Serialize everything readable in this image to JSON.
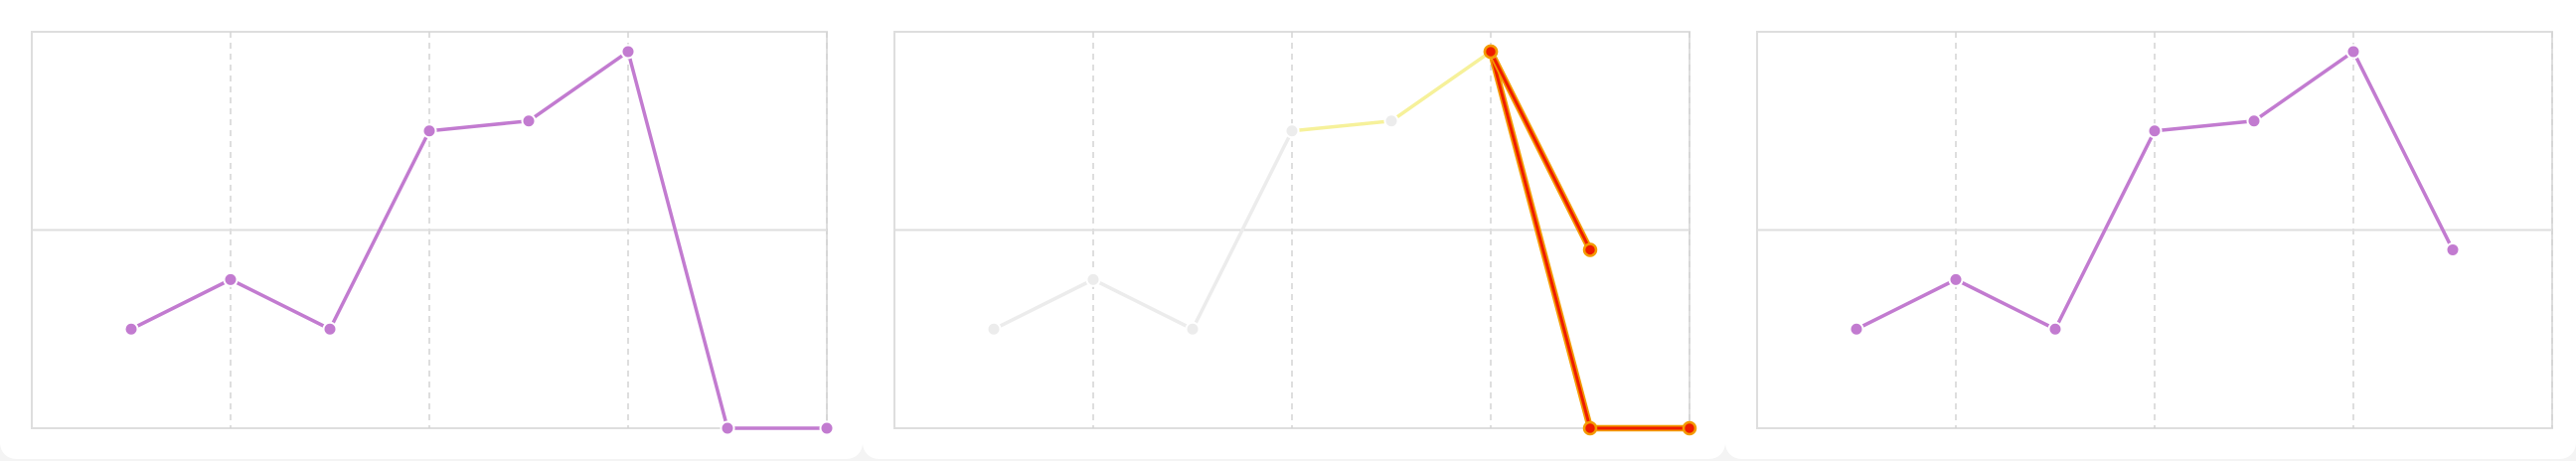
{
  "colors": {
    "background": "#f4f4f4",
    "panel": "#ffffff",
    "frame": "#dedede",
    "grid": "#d4d4d4",
    "midline": "#dedede",
    "series_purple": "#c27bd0",
    "faded_gray": "#ececec",
    "faded_yellow": "#f6f19a",
    "highlight_red": "#ee1c00",
    "highlight_orange": "#f39a00"
  },
  "chart_data": [
    {
      "type": "line",
      "panel": "left",
      "title": "",
      "xlabel": "",
      "ylabel": "",
      "xlim": [
        0,
        8
      ],
      "ylim": [
        0,
        4
      ],
      "grid": true,
      "series": [
        {
          "style": "purple",
          "points": [
            [
              1,
              1
            ],
            [
              2,
              1.5
            ],
            [
              3,
              1
            ],
            [
              4,
              3
            ],
            [
              5,
              3.1
            ],
            [
              6,
              3.8
            ],
            [
              7,
              0
            ],
            [
              8,
              0
            ]
          ]
        }
      ]
    },
    {
      "type": "line",
      "panel": "middle",
      "title": "",
      "xlabel": "",
      "ylabel": "",
      "xlim": [
        0,
        8
      ],
      "ylim": [
        0,
        4
      ],
      "grid": true,
      "series": [
        {
          "style": "faded",
          "points": [
            [
              1,
              1
            ],
            [
              2,
              1.5
            ],
            [
              3,
              1
            ],
            [
              4,
              3
            ]
          ]
        },
        {
          "style": "yellow",
          "points": [
            [
              4,
              3
            ],
            [
              5,
              3.1
            ],
            [
              6,
              3.8
            ]
          ]
        },
        {
          "style": "highlight",
          "points": [
            [
              6,
              3.8
            ],
            [
              7,
              0
            ],
            [
              8,
              0
            ]
          ]
        },
        {
          "style": "highlight",
          "points": [
            [
              6,
              3.8
            ],
            [
              7,
              1.8
            ]
          ]
        }
      ]
    },
    {
      "type": "line",
      "panel": "right",
      "title": "",
      "xlabel": "",
      "ylabel": "",
      "xlim": [
        0,
        8
      ],
      "ylim": [
        0,
        4
      ],
      "grid": true,
      "series": [
        {
          "style": "purple",
          "points": [
            [
              1,
              1
            ],
            [
              2,
              1.5
            ],
            [
              3,
              1
            ],
            [
              4,
              3
            ],
            [
              5,
              3.1
            ],
            [
              6,
              3.8
            ],
            [
              7,
              1.8
            ]
          ]
        }
      ]
    }
  ]
}
